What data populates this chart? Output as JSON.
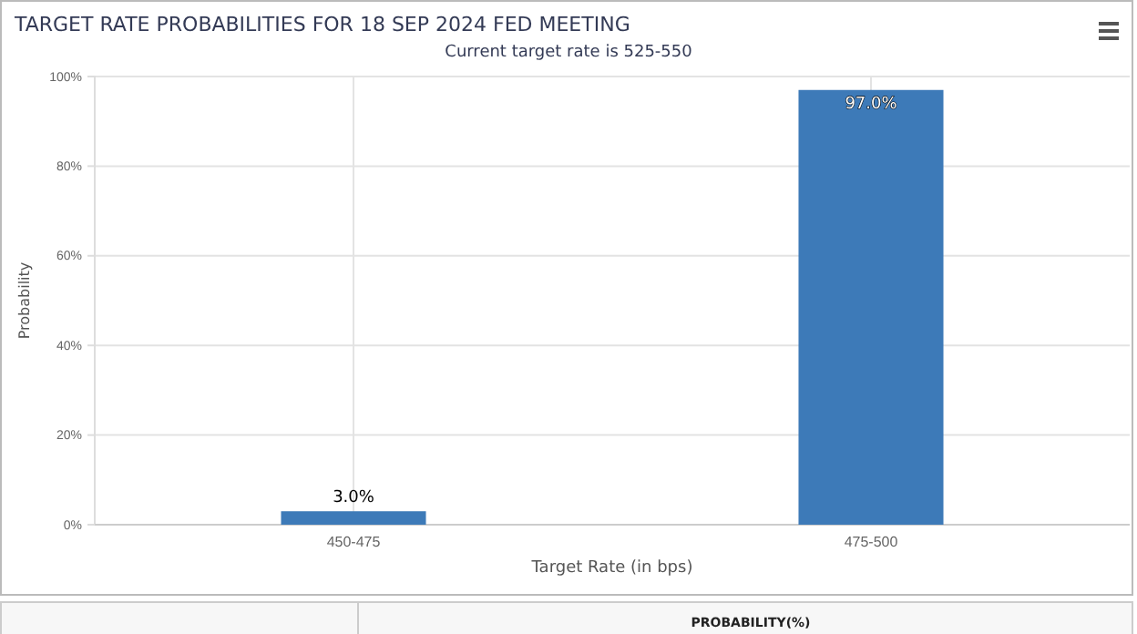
{
  "chart_data": {
    "type": "bar",
    "title": "TARGET RATE PROBABILITIES FOR 18 SEP 2024 FED MEETING",
    "subtitle": "Current target rate is 525-550",
    "xlabel": "Target Rate (in bps)",
    "ylabel": "Probability",
    "categories": [
      "450-475",
      "475-500"
    ],
    "values": [
      3.0,
      97.0
    ],
    "value_labels": [
      "3.0%",
      "97.0%"
    ],
    "color": "#3d7ab8",
    "ylim": [
      0,
      100
    ],
    "yticks": [
      {
        "value": 0,
        "label": "0%"
      },
      {
        "value": 20,
        "label": "20%"
      },
      {
        "value": 40,
        "label": "40%"
      },
      {
        "value": 60,
        "label": "60%"
      },
      {
        "value": 80,
        "label": "80%"
      },
      {
        "value": 100,
        "label": "100%"
      }
    ],
    "grid": true,
    "annotations": [
      "PROBABILITY(%)"
    ]
  }
}
